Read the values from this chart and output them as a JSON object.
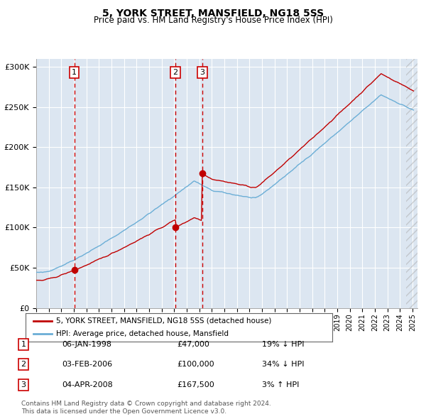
{
  "title": "5, YORK STREET, MANSFIELD, NG18 5SS",
  "subtitle": "Price paid vs. HM Land Registry's House Price Index (HPI)",
  "legend_line1": "5, YORK STREET, MANSFIELD, NG18 5SS (detached house)",
  "legend_line2": "HPI: Average price, detached house, Mansfield",
  "footer1": "Contains HM Land Registry data © Crown copyright and database right 2024.",
  "footer2": "This data is licensed under the Open Government Licence v3.0.",
  "transactions": [
    {
      "num": 1,
      "date": "06-JAN-1998",
      "price": 47000,
      "hpi_diff": "19% ↓ HPI",
      "year": 1998.04
    },
    {
      "num": 2,
      "date": "03-FEB-2006",
      "price": 100000,
      "hpi_diff": "34% ↓ HPI",
      "year": 2006.09
    },
    {
      "num": 3,
      "date": "04-APR-2008",
      "price": 167500,
      "hpi_diff": "3% ↑ HPI",
      "year": 2008.25
    }
  ],
  "hpi_color": "#6baed6",
  "price_color": "#c00000",
  "dashed_color": "#cc0000",
  "bg_color": "#dce6f1",
  "grid_color": "#ffffff",
  "ylim": [
    0,
    310000
  ],
  "xlim_start": 1995.3,
  "xlim_end": 2025.4,
  "yticks": [
    0,
    50000,
    100000,
    150000,
    200000,
    250000,
    300000
  ]
}
